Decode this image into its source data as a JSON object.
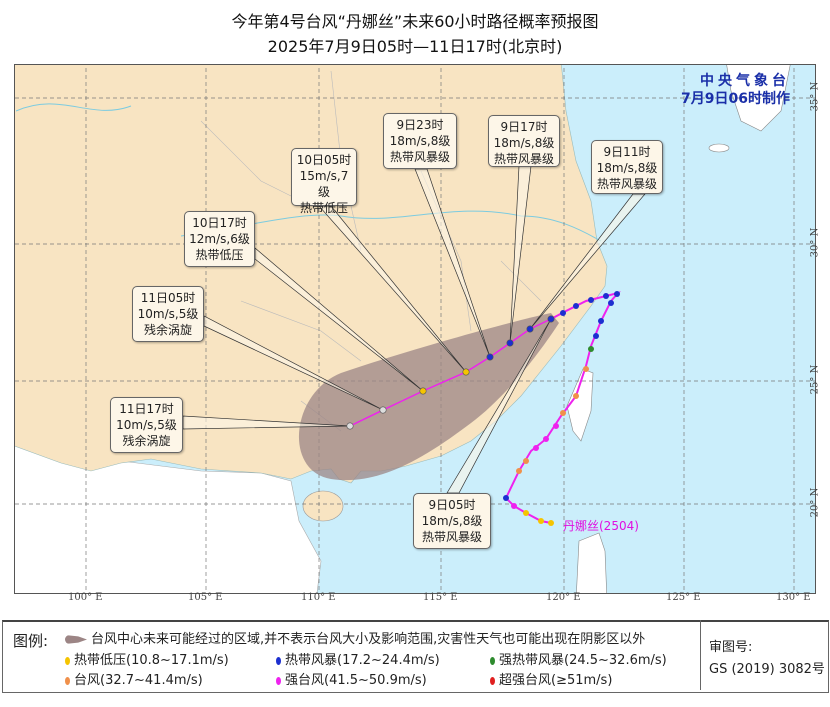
{
  "header": {
    "title": "今年第4号台风“丹娜丝”未来60小时路径概率预报图",
    "subtitle": "2025年7月9日05时—11日17时(北京时)"
  },
  "agency": {
    "name": "中央气象台",
    "issued": "7月9日06时制作"
  },
  "storm": {
    "label": "丹娜丝(2504)"
  },
  "axes": {
    "lon": [
      "100° E",
      "105° E",
      "110° E",
      "115° E",
      "120° E",
      "125° E",
      "130° E"
    ],
    "lat": [
      "20° N",
      "25° N",
      "30° N",
      "35° N"
    ]
  },
  "callouts": [
    {
      "time": "9日05时",
      "wind": "18m/s,8级",
      "category": "热带风暴级"
    },
    {
      "time": "9日11时",
      "wind": "18m/s,8级",
      "category": "热带风暴级"
    },
    {
      "time": "9日17时",
      "wind": "18m/s,8级",
      "category": "热带风暴级"
    },
    {
      "time": "9日23时",
      "wind": "18m/s,8级",
      "category": "热带风暴级"
    },
    {
      "time": "10日05时",
      "wind": "15m/s,7级",
      "category": "热带低压"
    },
    {
      "time": "10日17时",
      "wind": "12m/s,6级",
      "category": "热带低压"
    },
    {
      "time": "11日05时",
      "wind": "10m/s,5级",
      "category": "残余涡旋"
    },
    {
      "time": "11日17时",
      "wind": "10m/s,5级",
      "category": "残余涡旋"
    }
  ],
  "legend": {
    "title": "图例:",
    "cone": "台风中心未来可能经过的区域,并不表示台风大小及影响范围,灾害性天气也可能出现在阴影区以外",
    "cone_color": "#9c8585",
    "items": [
      {
        "label": "热带低压(10.8~17.1m/s)",
        "color": "#f5c400"
      },
      {
        "label": "热带风暴(17.2~24.4m/s)",
        "color": "#1c2fd0"
      },
      {
        "label": "强热带风暴(24.5~32.6m/s)",
        "color": "#2e8b2e"
      },
      {
        "label": "台风(32.7~41.4m/s)",
        "color": "#f0904a"
      },
      {
        "label": "强台风(41.5~50.9m/s)",
        "color": "#ee22ee"
      },
      {
        "label": "超强台风(≥51m/s)",
        "color": "#e02020"
      }
    ]
  },
  "approval": {
    "label": "审图号:",
    "number": "GS (2019) 3082号"
  },
  "colors": {
    "land": "#f8e4c2",
    "sea": "#cbeefb",
    "foreign_land": "#ffffff",
    "forecast_track": "#ee22ee"
  }
}
